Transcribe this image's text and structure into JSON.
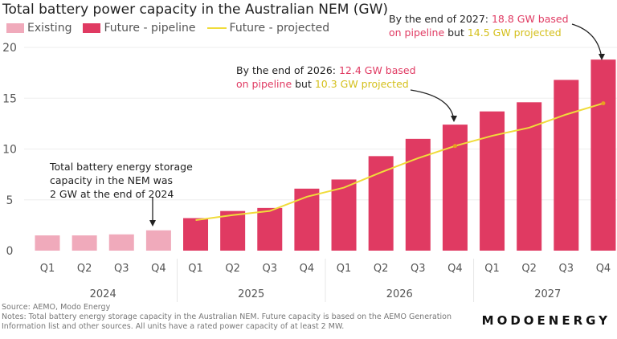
{
  "chart_data": {
    "type": "bar",
    "title": "Total battery power capacity in the Australian NEM (GW)",
    "legend": {
      "placement": "top-left",
      "entries": [
        "Existing",
        "Future - pipeline",
        "Future - projected"
      ]
    },
    "colors": {
      "existing": "#f0aabb",
      "pipeline": "#e03a62",
      "projected": "#f0dc3a",
      "annotation_red": "#e03a62",
      "annotation_yellow": "#d4bf1a"
    },
    "years": [
      "2024",
      "2025",
      "2026",
      "2027"
    ],
    "quarters": [
      "Q1",
      "Q2",
      "Q3",
      "Q4"
    ],
    "ylim": [
      0,
      20
    ],
    "yticks": [
      0,
      5,
      10,
      15,
      20
    ],
    "grid": true,
    "existing": [
      1.5,
      1.5,
      1.6,
      2.0,
      null,
      null,
      null,
      null,
      null,
      null,
      null,
      null,
      null,
      null,
      null,
      null
    ],
    "pipeline": [
      null,
      null,
      null,
      null,
      3.2,
      3.9,
      4.2,
      6.1,
      7.0,
      9.3,
      11.0,
      12.4,
      13.7,
      14.6,
      16.8,
      18.8
    ],
    "projected": [
      null,
      null,
      null,
      null,
      3.0,
      3.5,
      3.9,
      5.3,
      6.2,
      7.7,
      9.1,
      10.3,
      11.3,
      12.1,
      13.4,
      14.5
    ],
    "annotations": {
      "a2024": [
        "Total battery energy storage",
        "capacity in the NEM was",
        "2 GW at the end of 2024"
      ],
      "a2026": {
        "p1": "By the end of 2026: ",
        "v1": "12.4 GW based",
        "v1b": "on pipeline",
        "p2": " but ",
        "v2": "10.3 GW projected"
      },
      "a2027": {
        "p1": "By the end of 2027: ",
        "v1": "18.8 GW based",
        "v1b": "on pipeline",
        "p2": " but ",
        "v2": "14.5 GW projected"
      }
    }
  },
  "footer": {
    "source": "Source: AEMO, Modo Energy",
    "notes": "Notes: Total battery energy storage capacity in the Australian NEM. Future capacity is based on the AEMO Generation Information list and other sources. All units have a rated power capacity of at least 2 MW.",
    "logo": "MODOENERGY"
  }
}
